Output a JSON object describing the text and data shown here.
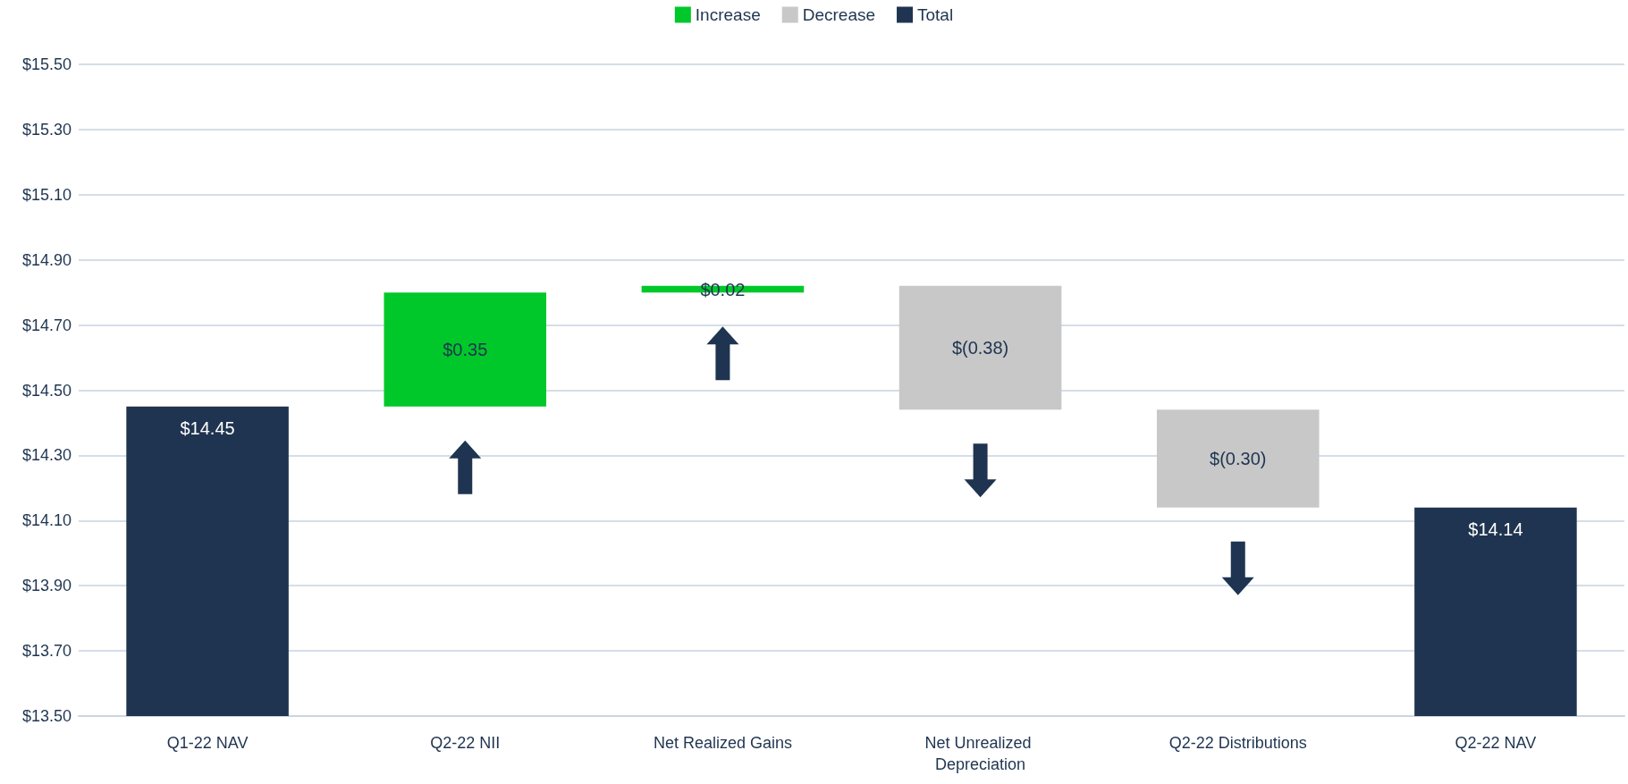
{
  "chart_data": {
    "type": "bar",
    "categories": [
      "Q1-22 NAV",
      "Q2-22 NII",
      "Net Realized Gains",
      "Net Unrealized Depreciation",
      "Q2-22 Distributions",
      "Q2-22 NAV"
    ],
    "series": [
      {
        "name": "Increase",
        "color": "#00c82a",
        "base": [
          null,
          14.45,
          14.8,
          null,
          null,
          null
        ],
        "values": [
          null,
          0.35,
          0.02,
          null,
          null,
          null
        ],
        "value_labels": [
          null,
          "$0.35",
          "$0.02",
          null,
          null,
          null
        ]
      },
      {
        "name": "Decrease",
        "color": "#c8c8c8",
        "base": [
          null,
          null,
          null,
          14.82,
          14.44,
          null
        ],
        "values": [
          null,
          null,
          null,
          -0.38,
          -0.3,
          null
        ],
        "value_labels": [
          null,
          null,
          null,
          "$(0.38)",
          "$(0.30)",
          null
        ]
      },
      {
        "name": "Total",
        "color": "#1f3450",
        "values": [
          14.45,
          null,
          null,
          null,
          null,
          14.14
        ],
        "value_labels": [
          "$14.45",
          null,
          null,
          null,
          null,
          "$14.14"
        ]
      }
    ],
    "ylim": [
      13.5,
      15.5
    ],
    "yticks": [
      {
        "value": 13.5,
        "label": "$13.50"
      },
      {
        "value": 13.7,
        "label": "$13.70"
      },
      {
        "value": 13.9,
        "label": "$13.90"
      },
      {
        "value": 14.1,
        "label": "$14.10"
      },
      {
        "value": 14.3,
        "label": "$14.30"
      },
      {
        "value": 14.5,
        "label": "$14.50"
      },
      {
        "value": 14.7,
        "label": "$14.70"
      },
      {
        "value": 14.9,
        "label": "$14.90"
      },
      {
        "value": 15.1,
        "label": "$15.10"
      },
      {
        "value": 15.3,
        "label": "$15.30"
      },
      {
        "value": 15.5,
        "label": "$15.50"
      }
    ],
    "grid": "y",
    "legend": "top"
  }
}
